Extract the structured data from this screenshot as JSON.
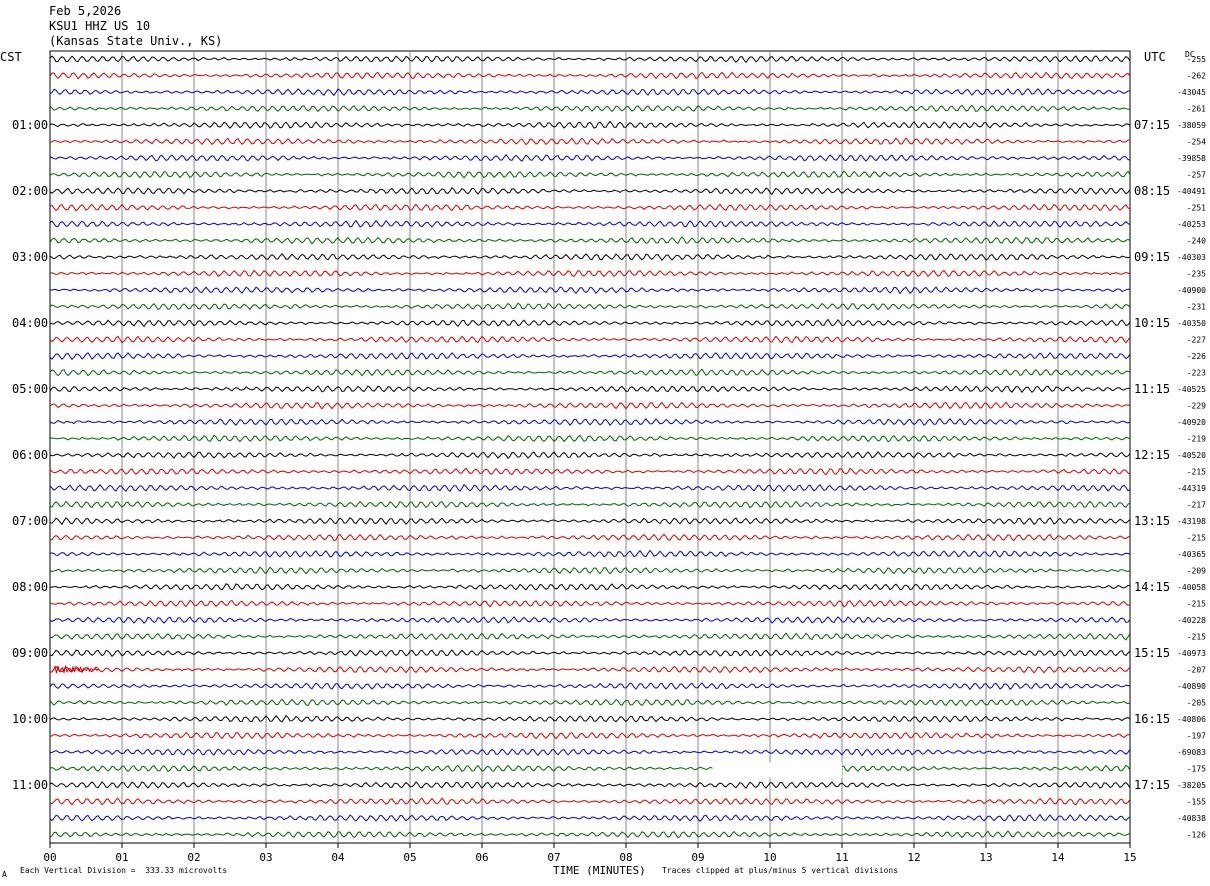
{
  "header": {
    "date": "Feb 5,2026",
    "station": "KSU1 HHZ US 10",
    "location": "(Kansas State Univ., KS)"
  },
  "axis": {
    "left_label": "CST",
    "right_label": "UTC",
    "dc_label": "DC",
    "x_title": "TIME (MINUTES)"
  },
  "footer": {
    "division_note": "Each Vertical Division =  333.33 microvolts",
    "clip_note": "Traces clipped at plus/minus 5 vertical divisions",
    "corner_mark": "A"
  },
  "chart_data": {
    "type": "line",
    "title": "",
    "xlabel": "TIME (MINUTES)",
    "xlim": [
      0,
      15
    ],
    "x_ticks": [
      "00",
      "01",
      "02",
      "03",
      "04",
      "05",
      "06",
      "07",
      "08",
      "09",
      "10",
      "11",
      "12",
      "13",
      "14",
      "15"
    ],
    "trace_count": 48,
    "trace_colors": [
      "#000000",
      "#d40000",
      "#0000cc",
      "#006400"
    ],
    "hour_labels_left": [
      "01:00",
      "02:00",
      "03:00",
      "04:00",
      "05:00",
      "06:00",
      "07:00",
      "08:00",
      "09:00",
      "10:00",
      "11:00"
    ],
    "hour_labels_right": [
      "07:15",
      "08:15",
      "09:15",
      "10:15",
      "11:15",
      "12:15",
      "13:15",
      "14:15",
      "15:15",
      "16:15",
      "17:15"
    ],
    "dc_offsets": [
      "-255",
      "-262",
      "-43045",
      "-261",
      "-38059",
      "-254",
      "-39858",
      "-257",
      "-40491",
      "-251",
      "-40253",
      "-240",
      "-40303",
      "-235",
      "-40900",
      "-231",
      "-40350",
      "-227",
      "-226",
      "-223",
      "-40525",
      "-229",
      "-40920",
      "-219",
      "-40520",
      "-215",
      "-44319",
      "-217",
      "-43198",
      "-215",
      "-40365",
      "-209",
      "-40058",
      "-215",
      "-40228",
      "-215",
      "-40973",
      "-207",
      "-40890",
      "-205",
      "-40806",
      "-197",
      "-69083",
      "-175",
      "-38205",
      "-155",
      "-40838",
      "-126"
    ],
    "data_gap": {
      "trace_index": 43,
      "from_minute": 9.2,
      "to_minute": 11.0
    }
  }
}
